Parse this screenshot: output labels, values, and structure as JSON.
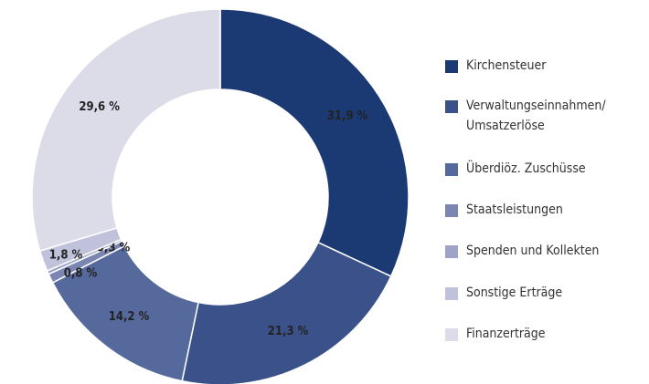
{
  "chart_data": {
    "type": "donut",
    "categories": [
      "Kirchensteuer",
      "Verwaltungseinnahmen/ Umsatzerlöse",
      "Überdiöz. Zuschüsse",
      "Staatsleistungen",
      "Spenden und Kollekten",
      "Sonstige Erträge",
      "Finanzerträge"
    ],
    "values": [
      31.9,
      21.3,
      14.2,
      0.8,
      0.3,
      1.8,
      29.6
    ],
    "value_labels": [
      "31,9 %",
      "21,3 %",
      "14,2 %",
      "0,8 %",
      "0,3 %",
      "1,8 %",
      "29,6 %"
    ],
    "colors": [
      "#1b3a73",
      "#3a5189",
      "#56699c",
      "#7c86b3",
      "#9ea4c8",
      "#c0c2dc",
      "#dcdce9"
    ],
    "legend": "right"
  }
}
